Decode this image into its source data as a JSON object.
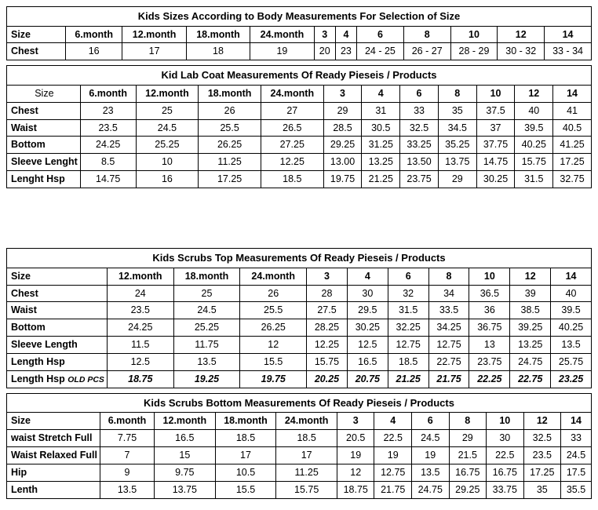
{
  "tables": {
    "body": {
      "title": "Kids Sizes According to Body Measurements For Selection of Size",
      "columns": [
        "Size",
        "6.month",
        "12.month",
        "18.month",
        "24.month",
        "3",
        "4",
        "6",
        "8",
        "10",
        "12",
        "14"
      ],
      "rows": [
        {
          "label": "Chest",
          "vals": [
            "16",
            "17",
            "18",
            "19",
            "20",
            "23",
            "24 - 25",
            "26 - 27",
            "28 - 29",
            "30 - 32",
            "33 - 34"
          ]
        }
      ]
    },
    "labcoat": {
      "title": "Kid Lab Coat   Measurements Of Ready Pieseis / Products",
      "columns": [
        "Size",
        "6.month",
        "12.month",
        "18.month",
        "24.month",
        "3",
        "4",
        "6",
        "8",
        "10",
        "12",
        "14"
      ],
      "rows": [
        {
          "label": "Chest",
          "vals": [
            "23",
            "25",
            "26",
            "27",
            "29",
            "31",
            "33",
            "35",
            "37.5",
            "40",
            "41"
          ]
        },
        {
          "label": "Waist",
          "vals": [
            "23.5",
            "24.5",
            "25.5",
            "26.5",
            "28.5",
            "30.5",
            "32.5",
            "34.5",
            "37",
            "39.5",
            "40.5"
          ]
        },
        {
          "label": "Bottom",
          "vals": [
            "24.25",
            "25.25",
            "26.25",
            "27.25",
            "29.25",
            "31.25",
            "33.25",
            "35.25",
            "37.75",
            "40.25",
            "41.25"
          ]
        },
        {
          "label": "Sleeve Lenght",
          "vals": [
            "8.5",
            "10",
            "11.25",
            "12.25",
            "13.00",
            "13.25",
            "13.50",
            "13.75",
            "14.75",
            "15.75",
            "17.25"
          ]
        },
        {
          "label": "Lenght Hsp",
          "vals": [
            "14.75",
            "16",
            "17.25",
            "18.5",
            "19.75",
            "21.25",
            "23.75",
            "29",
            "30.25",
            "31.5",
            "32.75"
          ]
        }
      ]
    },
    "scrubs_top": {
      "title": "Kids Scrubs Top   Measurements Of Ready Pieseis / Products",
      "columns": [
        "Size",
        "12.month",
        "18.month",
        "24.month",
        "3",
        "4",
        "6",
        "8",
        "10",
        "12",
        "14"
      ],
      "rows": [
        {
          "label": "Chest",
          "vals": [
            "24",
            "25",
            "26",
            "28",
            "30",
            "32",
            "34",
            "36.5",
            "39",
            "40"
          ]
        },
        {
          "label": "Waist",
          "vals": [
            "23.5",
            "24.5",
            "25.5",
            "27.5",
            "29.5",
            "31.5",
            "33.5",
            "36",
            "38.5",
            "39.5"
          ]
        },
        {
          "label": "Bottom",
          "vals": [
            "24.25",
            "25.25",
            "26.25",
            "28.25",
            "30.25",
            "32.25",
            "34.25",
            "36.75",
            "39.25",
            "40.25"
          ]
        },
        {
          "label": "Sleeve Length",
          "vals": [
            "11.5",
            "11.75",
            "12",
            "12.25",
            "12.5",
            "12.75",
            "12.75",
            "13",
            "13.25",
            "13.5"
          ]
        },
        {
          "label": "Length Hsp",
          "vals": [
            "12.5",
            "13.5",
            "15.5",
            "15.75",
            "16.5",
            "18.5",
            "22.75",
            "23.75",
            "24.75",
            "25.75"
          ]
        },
        {
          "label": "Length Hsp OLD PCS",
          "italic": true,
          "vals": [
            "18.75",
            "19.25",
            "19.75",
            "20.25",
            "20.75",
            "21.25",
            "21.75",
            "22.25",
            "22.75",
            "23.25"
          ]
        }
      ],
      "oldpcs_suffix": "OLD PCS"
    },
    "scrubs_bottom": {
      "title": "Kids Scrubs Bottom   Measurements Of Ready Pieseis / Products",
      "columns": [
        "Size",
        "6.month",
        "12.month",
        "18.month",
        "24.month",
        "3",
        "4",
        "6",
        "8",
        "10",
        "12",
        "14"
      ],
      "rows": [
        {
          "label": "waist Stretch Full",
          "vals": [
            "7.75",
            "16.5",
            "18.5",
            "18.5",
            "20.5",
            "22.5",
            "24.5",
            "29",
            "30",
            "32.5",
            "33"
          ]
        },
        {
          "label": "Waist Relaxed Full",
          "vals": [
            "7",
            "15",
            "17",
            "17",
            "19",
            "19",
            "19",
            "21.5",
            "22.5",
            "23.5",
            "24.5"
          ]
        },
        {
          "label": "Hip",
          "vals": [
            "9",
            "9.75",
            "10.5",
            "11.25",
            "12",
            "12.75",
            "13.5",
            "16.75",
            "16.75",
            "17.25",
            "17.5"
          ]
        },
        {
          "label": "Lenth",
          "vals": [
            "13.5",
            "13.75",
            "15.5",
            "15.75",
            "18.75",
            "21.75",
            "24.75",
            "29.25",
            "33.75",
            "35",
            "35.5"
          ]
        }
      ]
    }
  }
}
